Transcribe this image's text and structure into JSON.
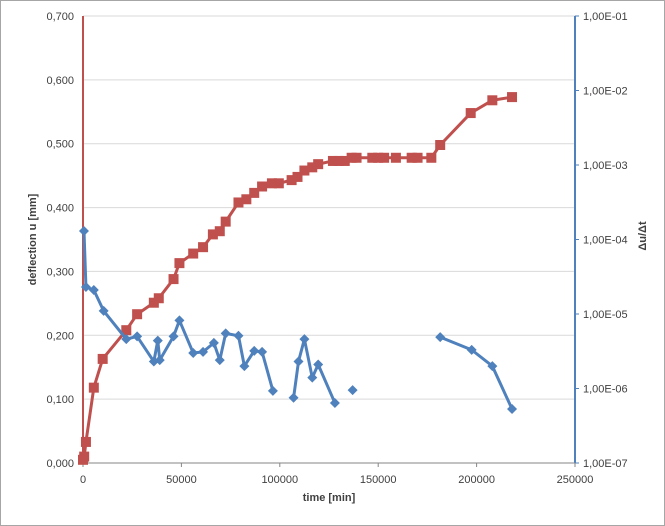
{
  "chart_data": {
    "type": "line",
    "title": "",
    "xlabel": "time [min]",
    "ylabel": "deflection u [mm]",
    "y2label": "Δu/Δt",
    "xlim": [
      0,
      250000
    ],
    "ylim": [
      0,
      0.7
    ],
    "y2lim": [
      1e-07,
      0.1
    ],
    "y2scale": "log",
    "grid": "horizontal",
    "legend": "none",
    "x_ticks": [
      "0",
      "50000",
      "100000",
      "150000",
      "200000",
      "250000"
    ],
    "y_ticks": [
      "0,000",
      "0,100",
      "0,200",
      "0,300",
      "0,400",
      "0,500",
      "0,600",
      "0,700"
    ],
    "y2_ticks": [
      "1,00E-07",
      "1,00E-06",
      "1,00E-05",
      "1,00E-04",
      "1,00E-03",
      "1,00E-02",
      "1,00E-01"
    ],
    "colors": {
      "deflection": "#c0504d",
      "rate": "#4f81bd",
      "left_axis": "#c0504d",
      "right_axis": "#4f81bd",
      "grid": "#d9d9d9"
    },
    "series": [
      {
        "axis": "left",
        "marker": "square",
        "x": [
          0,
          600,
          1500,
          5500,
          10000,
          22000,
          27500,
          36000,
          38500,
          46000,
          49000,
          56000,
          61000,
          66000,
          69500,
          72500,
          79000,
          83000,
          87000,
          91000,
          96000,
          99500,
          106000,
          109000,
          112500,
          116500,
          119500,
          127000,
          130000,
          133000,
          136500,
          139000,
          147000,
          150000,
          153000,
          159000,
          167000,
          170000,
          177000,
          181500,
          197000,
          208000,
          218000
        ],
        "y": [
          0.005,
          0.01,
          0.033,
          0.118,
          0.163,
          0.208,
          0.233,
          0.251,
          0.258,
          0.288,
          0.313,
          0.328,
          0.338,
          0.358,
          0.363,
          0.378,
          0.408,
          0.413,
          0.423,
          0.433,
          0.438,
          0.438,
          0.443,
          0.448,
          0.458,
          0.463,
          0.468,
          0.473,
          0.473,
          0.473,
          0.478,
          0.478,
          0.478,
          0.478,
          0.478,
          0.478,
          0.478,
          0.478,
          0.478,
          0.498,
          0.548,
          0.568,
          0.573
        ]
      },
      {
        "axis": "right",
        "marker": "diamond",
        "segments": [
          {
            "x": [
              500,
              1500,
              5500,
              10500,
              22000,
              27500,
              36000,
              38000,
              39000,
              46000,
              49000,
              56000,
              61000,
              66500,
              69500,
              72500,
              79000,
              82000,
              87000,
              91000,
              96500
            ],
            "y": [
              0.00013,
              2.3e-05,
              2.1e-05,
              1.1e-05,
              4.6e-06,
              5e-06,
              2.3e-06,
              4.4e-06,
              2.4e-06,
              5e-06,
              8.2e-06,
              3e-06,
              3.1e-06,
              4.1e-06,
              2.4e-06,
              5.5e-06,
              5.1e-06,
              2e-06,
              3.2e-06,
              3.1e-06,
              9.3e-07
            ]
          },
          {
            "x": [
              107000,
              109500,
              112500,
              116500,
              119500,
              128000
            ],
            "y": [
              7.5e-07,
              2.3e-06,
              4.6e-06,
              1.4e-06,
              2.1e-06,
              6.4e-07
            ]
          },
          {
            "x": [
              137000
            ],
            "y": [
              9.5e-07
            ]
          },
          {
            "x": [
              181500,
              197500,
              208000,
              218000
            ],
            "y": [
              4.9e-06,
              3.3e-06,
              2e-06,
              5.3e-07
            ]
          }
        ]
      }
    ]
  }
}
